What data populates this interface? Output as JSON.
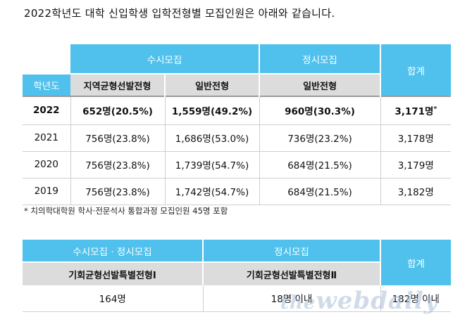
{
  "intro": "2022학년도 대학 신입학생 입학전형별 모집인원은 아래와 같습니다.",
  "table1": {
    "group_susi": "수시모집",
    "group_jeongsi": "정시모집",
    "total_header": "합계",
    "year_header": "학년도",
    "sub_headers": [
      "지역균형선발전형",
      "일반전형",
      "일반전형"
    ],
    "rows": [
      {
        "year": "2022",
        "c1": "652명(20.5%)",
        "c2": "1,559명(49.2%)",
        "c3": "960명(30.3%)",
        "total": "3,171명",
        "mark": "*"
      },
      {
        "year": "2021",
        "c1": "756명(23.8%)",
        "c2": "1,686명(53.0%)",
        "c3": "736명(23.2%)",
        "total": "3,178명"
      },
      {
        "year": "2020",
        "c1": "756명(23.8%)",
        "c2": "1,739명(54.7%)",
        "c3": "684명(21.5%)",
        "total": "3,179명"
      },
      {
        "year": "2019",
        "c1": "756명(23.8%)",
        "c2": "1,742명(54.7%)",
        "c3": "684명(21.5%)",
        "total": "3,182명"
      }
    ]
  },
  "note": "* 치의학대학원 학사·전문석사 통합과정 모집인원 45명 포함",
  "table2": {
    "h1": "수시모집 · 정시모집",
    "h2": "정시모집",
    "total_header": "합계",
    "sub1": "기회균형선발특별전형Ⅰ",
    "sub2": "기회균형선발특별전형Ⅱ",
    "v1": "164명",
    "v2": "18명 이내",
    "total": "182명 이내"
  },
  "watermark": {
    "pre": "the",
    "main": "webdaily"
  }
}
